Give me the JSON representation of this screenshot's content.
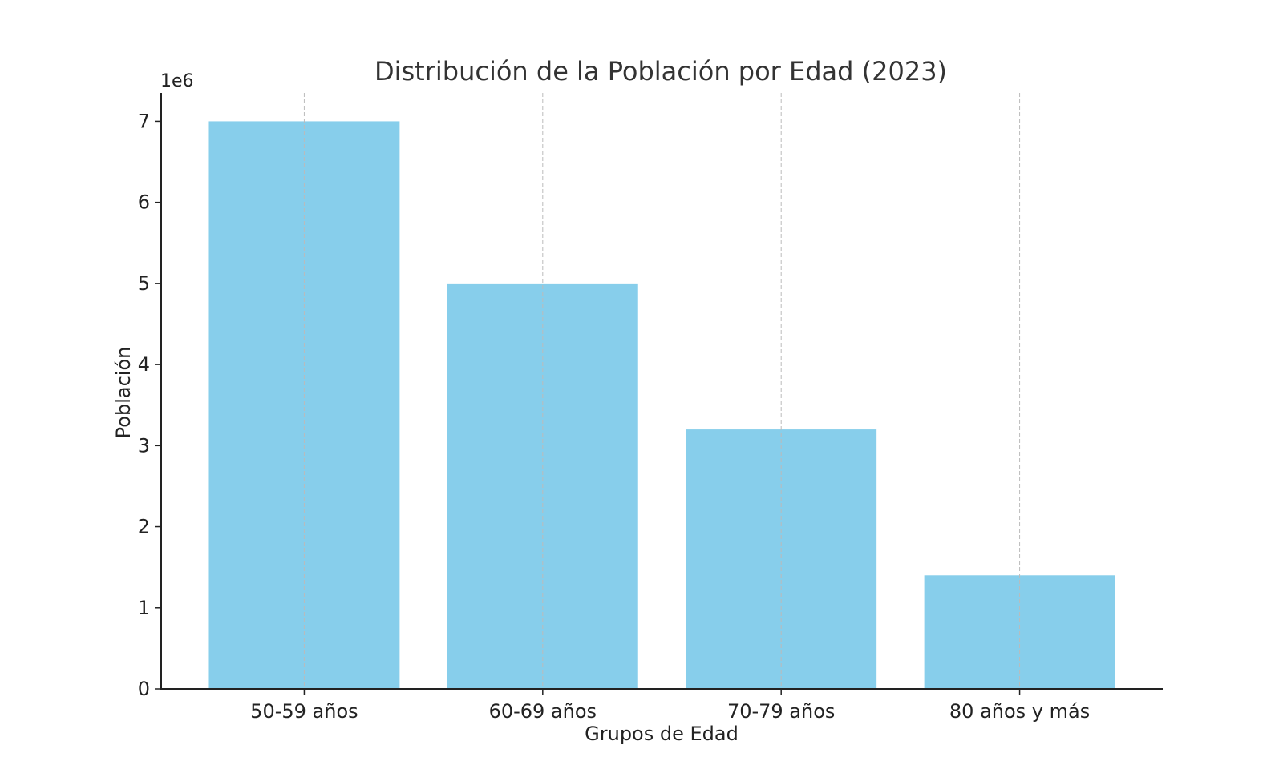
{
  "chart_data": {
    "type": "bar",
    "title": "Distribución de la Población por Edad (2023)",
    "xlabel": "Grupos de Edad",
    "ylabel": "Población",
    "y_offset_label": "1e6",
    "categories": [
      "50-59 años",
      "60-69 años",
      "70-79 años",
      "80 años y más"
    ],
    "values": [
      7000000,
      5000000,
      3200000,
      1400000
    ],
    "ylim": [
      0,
      7350000
    ],
    "yticks": [
      0,
      1000000,
      2000000,
      3000000,
      4000000,
      5000000,
      6000000,
      7000000
    ],
    "ytick_labels": [
      "0",
      "1",
      "2",
      "3",
      "4",
      "5",
      "6",
      "7"
    ],
    "grid": "x-dashed",
    "bar_color": "#87CEEB"
  }
}
